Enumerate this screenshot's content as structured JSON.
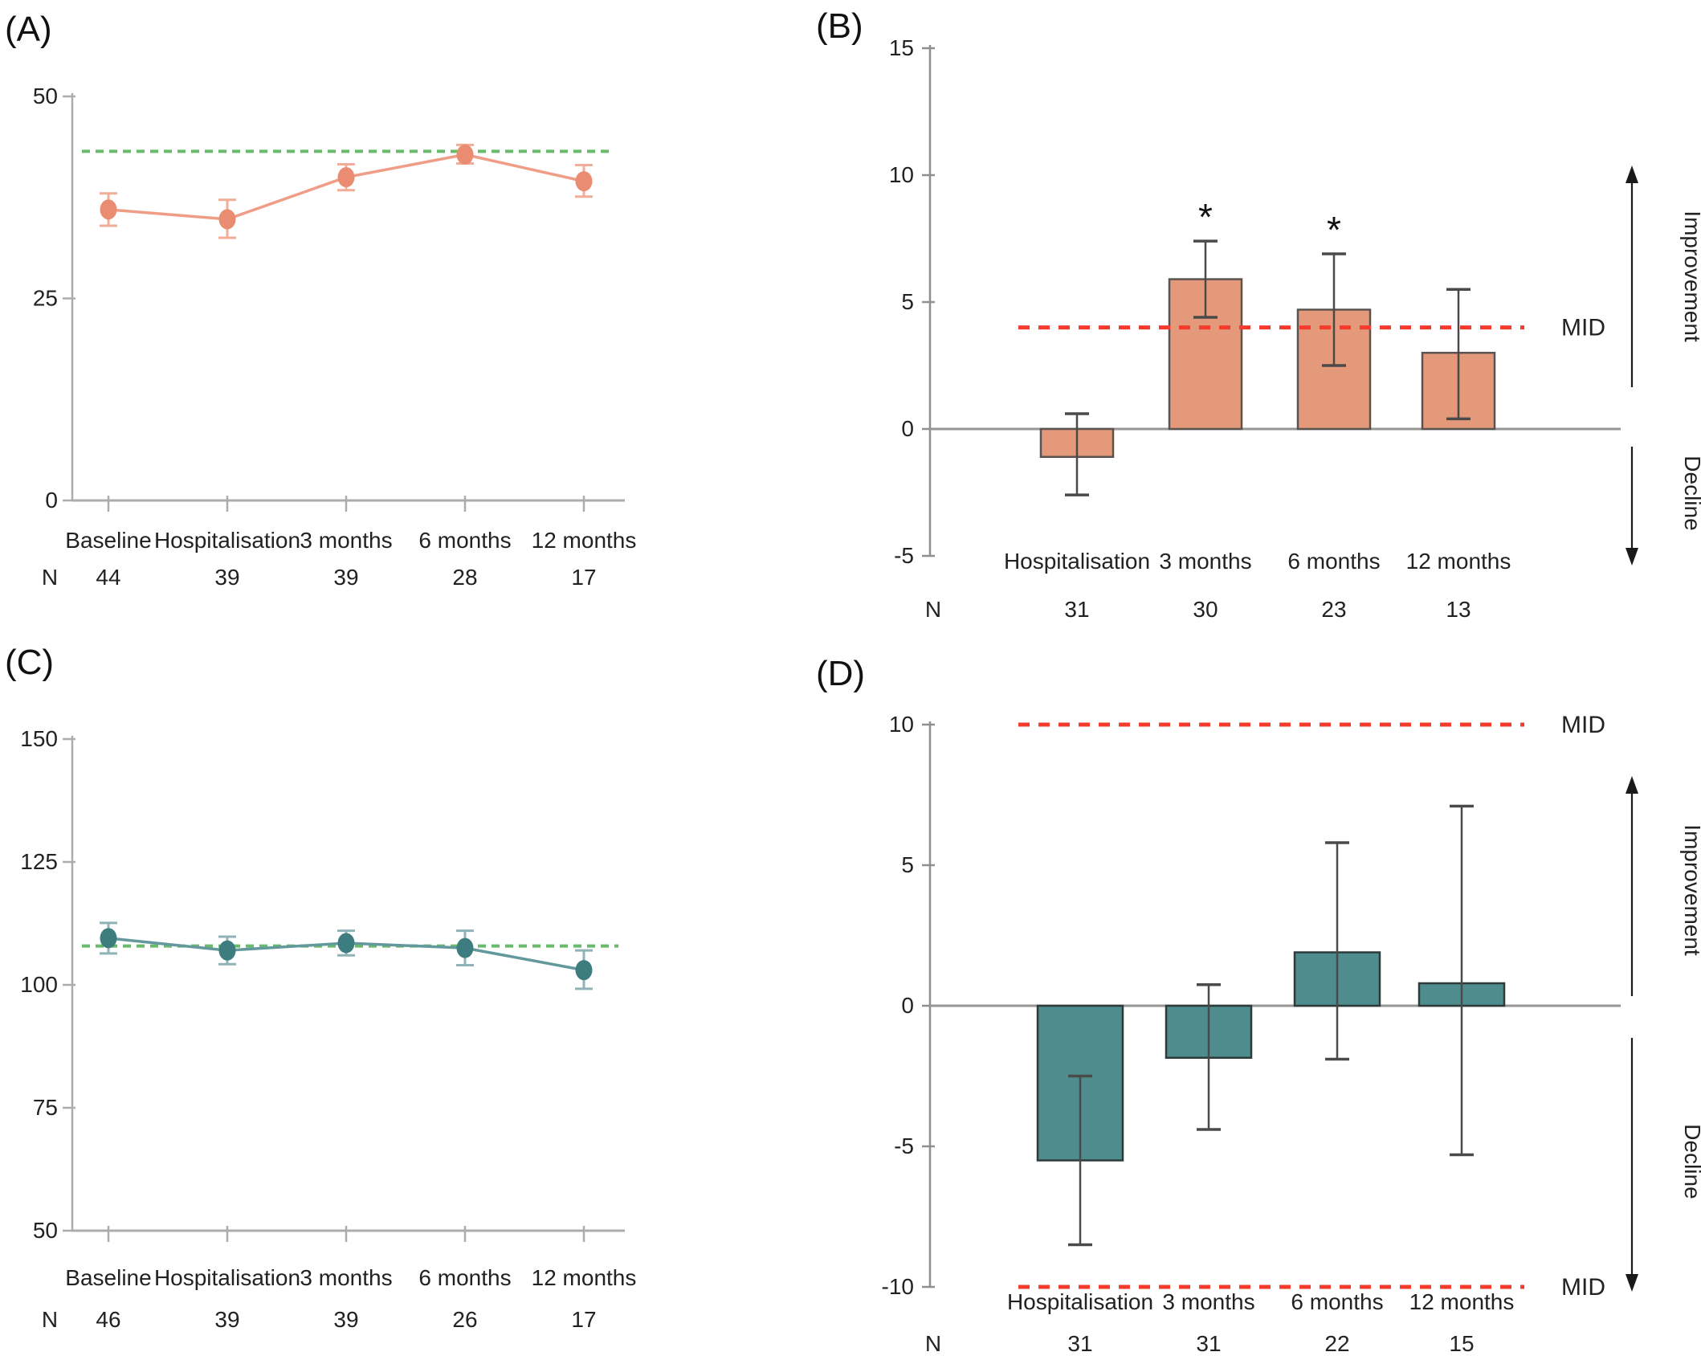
{
  "figure": {
    "panels": {
      "a_label": "(A)",
      "b_label": "(B)",
      "c_label": "(C)",
      "d_label": "(D)"
    }
  },
  "colors": {
    "axis_light_gray": "#ACACAC",
    "axis_dark_gray": "#8F8F8F",
    "zero_line_gray": "#969696",
    "error_bar_dark": "#4A4A4A",
    "text_dark": "#222222",
    "green_dashed": "#6ABA6B",
    "red_dashed": "#F43B2E",
    "salmon_fill": "#E5997B",
    "salmon_line": "#EF9D86",
    "salmon_point": "#E98C72",
    "salmon_error": "#F2AC97",
    "teal_fill": "#4E8C8D",
    "teal_line": "#63999C",
    "teal_point": "#3E7D7F",
    "teal_error": "#8FB3B6"
  },
  "chart_data": [
    {
      "panel": "A",
      "type": "line",
      "title": "",
      "xlabel": "",
      "ylabel": "",
      "ylim": [
        0,
        50
      ],
      "y_ticks": [
        50,
        25,
        0
      ],
      "grid": false,
      "legend": "none",
      "categories": [
        "Baseline",
        "Hospitalisation",
        "3 months",
        "6 months",
        "12 months"
      ],
      "n_label": "N",
      "n_values": [
        "44",
        "39",
        "39",
        "28",
        "17"
      ],
      "values": [
        36,
        34.8,
        40,
        42.8,
        39.5
      ],
      "err_low": [
        34,
        32.5,
        38.4,
        41.7,
        37.6
      ],
      "err_high": [
        38,
        37.2,
        41.6,
        44,
        41.5
      ],
      "reference_line": {
        "value": 43.2,
        "color": "#6ABA6B",
        "style": "dashed"
      },
      "series_color": "#EF9D86",
      "point_color": "#E98C72",
      "error_color": "#F2AC97"
    },
    {
      "panel": "B",
      "type": "bar",
      "title": "",
      "xlabel": "",
      "ylabel": "",
      "ylim": [
        -5,
        15
      ],
      "y_ticks": [
        15,
        10,
        5,
        0,
        -5
      ],
      "grid": false,
      "legend": "none",
      "categories": [
        "Hospitalisation",
        "3 months",
        "6 months",
        "12 months"
      ],
      "n_label": "N",
      "n_values": [
        "31",
        "30",
        "23",
        "13"
      ],
      "values": [
        -1.1,
        5.9,
        4.7,
        3.0
      ],
      "err_low": [
        -2.6,
        4.4,
        2.5,
        0.4
      ],
      "err_high": [
        0.6,
        7.4,
        6.9,
        5.5
      ],
      "significance": [
        "",
        "*",
        "*",
        ""
      ],
      "mid_lines": [
        {
          "value": 4,
          "label": "MID"
        }
      ],
      "improvement_label": "Improvement",
      "decline_label": "Decline",
      "bar_color": "#E5997B",
      "bar_stroke": "#5A5350"
    },
    {
      "panel": "C",
      "type": "line",
      "title": "",
      "xlabel": "",
      "ylabel": "",
      "ylim": [
        50,
        150
      ],
      "y_ticks": [
        150,
        125,
        100,
        75,
        50
      ],
      "grid": false,
      "legend": "none",
      "categories": [
        "Baseline",
        "Hospitalisation",
        "3 months",
        "6 months",
        "12 months"
      ],
      "n_label": "N",
      "n_values": [
        "46",
        "39",
        "39",
        "26",
        "17"
      ],
      "values": [
        109.5,
        107,
        108.5,
        107.5,
        103
      ],
      "err_low": [
        106.4,
        104.2,
        106,
        104,
        99.2
      ],
      "err_high": [
        112.6,
        109.8,
        111,
        111,
        107
      ],
      "reference_line": {
        "value": 107.9,
        "color": "#6ABA6B",
        "style": "dashed"
      },
      "series_color": "#63999C",
      "point_color": "#3E7D7F",
      "error_color": "#8FB3B6"
    },
    {
      "panel": "D",
      "type": "bar",
      "title": "",
      "xlabel": "",
      "ylabel": "",
      "ylim": [
        -10,
        10
      ],
      "y_ticks": [
        10,
        5,
        0,
        -5,
        -10
      ],
      "grid": false,
      "legend": "none",
      "categories": [
        "Hospitalisation",
        "3 months",
        "6 months",
        "12 months"
      ],
      "n_label": "N",
      "n_values": [
        "31",
        "31",
        "22",
        "15"
      ],
      "values": [
        -5.5,
        -1.85,
        1.9,
        0.8
      ],
      "err_low": [
        -8.5,
        -4.4,
        -1.9,
        -5.3
      ],
      "err_high": [
        -2.5,
        0.75,
        5.8,
        7.1
      ],
      "significance": [
        "",
        "",
        "",
        ""
      ],
      "mid_lines": [
        {
          "value": 10,
          "label": "MID"
        },
        {
          "value": -10,
          "label": "MID"
        }
      ],
      "improvement_label": "Improvement",
      "decline_label": "Decline",
      "bar_color": "#4E8C8D",
      "bar_stroke": "#2F3A3A"
    }
  ]
}
